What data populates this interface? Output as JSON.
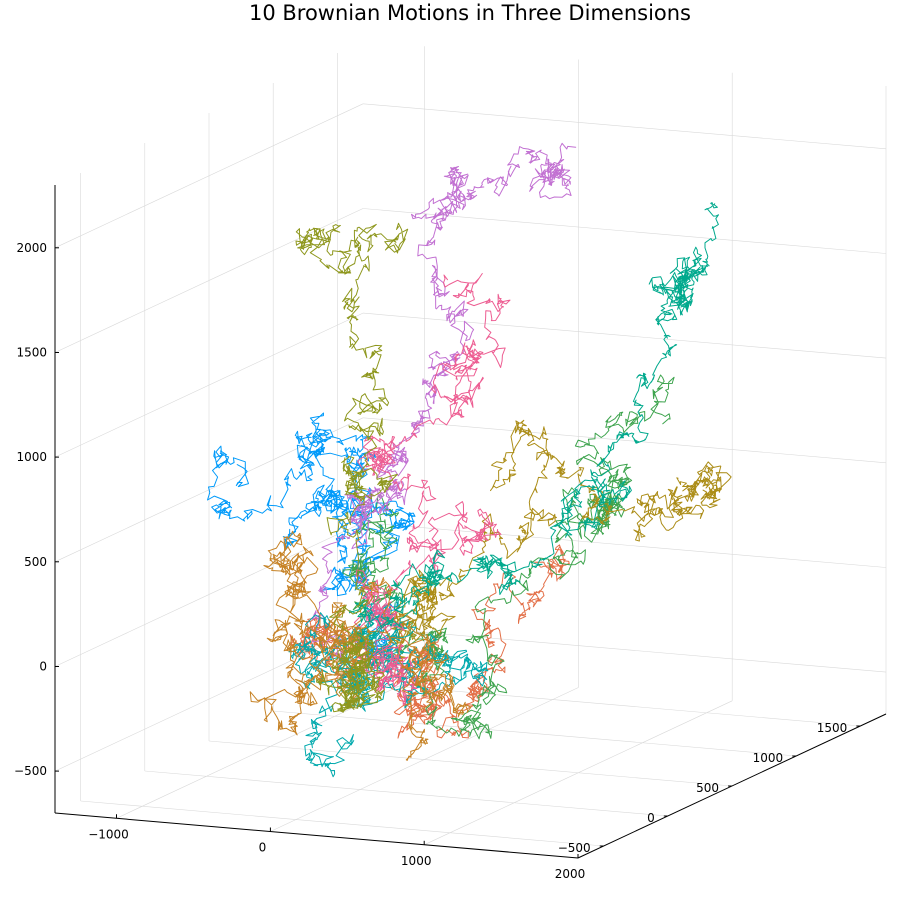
{
  "chart_data": {
    "type": "line",
    "title": "10 Brownian Motions in Three Dimensions",
    "xlabel": "",
    "ylabel": "",
    "zlabel": "",
    "xlim": [
      -1400,
      2000
    ],
    "ylim": [
      -700,
      1700
    ],
    "zlim": [
      -700,
      2300
    ],
    "x_ticks": [
      -1000,
      0,
      1000,
      2000
    ],
    "x_tick_labels": [
      "−1000",
      "0",
      "1000",
      "2000"
    ],
    "y_ticks": [
      -500,
      0,
      500,
      1000,
      1500
    ],
    "y_tick_labels": [
      "−500",
      "0",
      "500",
      "1000",
      "1500"
    ],
    "z_ticks": [
      -500,
      0,
      500,
      1000,
      1500,
      2000
    ],
    "z_tick_labels": [
      "−500",
      "0",
      "500",
      "1000",
      "1500",
      "2000"
    ],
    "grid": true,
    "legend": "none",
    "steps_per_path": 1000,
    "series": [
      {
        "color": "#009AFA",
        "start": [
          0,
          0,
          0
        ],
        "end": [
          -1050,
          300,
          700
        ],
        "spread": 1.0
      },
      {
        "color": "#E36F47",
        "start": [
          0,
          0,
          0
        ],
        "end": [
          1250,
          100,
          380
        ],
        "spread": 0.9
      },
      {
        "color": "#3EA44E",
        "start": [
          0,
          0,
          0
        ],
        "end": [
          1300,
          800,
          900
        ],
        "spread": 1.0
      },
      {
        "color": "#C271D2",
        "start": [
          0,
          0,
          0
        ],
        "end": [
          400,
          1200,
          2050
        ],
        "spread": 0.9
      },
      {
        "color": "#AC8D18",
        "start": [
          0,
          0,
          0
        ],
        "end": [
          1900,
          200,
          850
        ],
        "spread": 0.9
      },
      {
        "color": "#00A9AD",
        "start": [
          0,
          0,
          0
        ],
        "end": [
          250,
          -350,
          -350
        ],
        "spread": 1.0
      },
      {
        "color": "#ED5D92",
        "start": [
          0,
          0,
          0
        ],
        "end": [
          -100,
          800,
          1500
        ],
        "spread": 1.0
      },
      {
        "color": "#C68225",
        "start": [
          0,
          0,
          0
        ],
        "end": [
          -300,
          -100,
          -250
        ],
        "spread": 1.1
      },
      {
        "color": "#00A98D",
        "start": [
          0,
          0,
          0
        ],
        "end": [
          1200,
          1300,
          1800
        ],
        "spread": 0.9
      },
      {
        "color": "#8E971D",
        "start": [
          0,
          0,
          0
        ],
        "end": [
          -500,
          900,
          1700
        ],
        "spread": 1.0
      }
    ]
  }
}
